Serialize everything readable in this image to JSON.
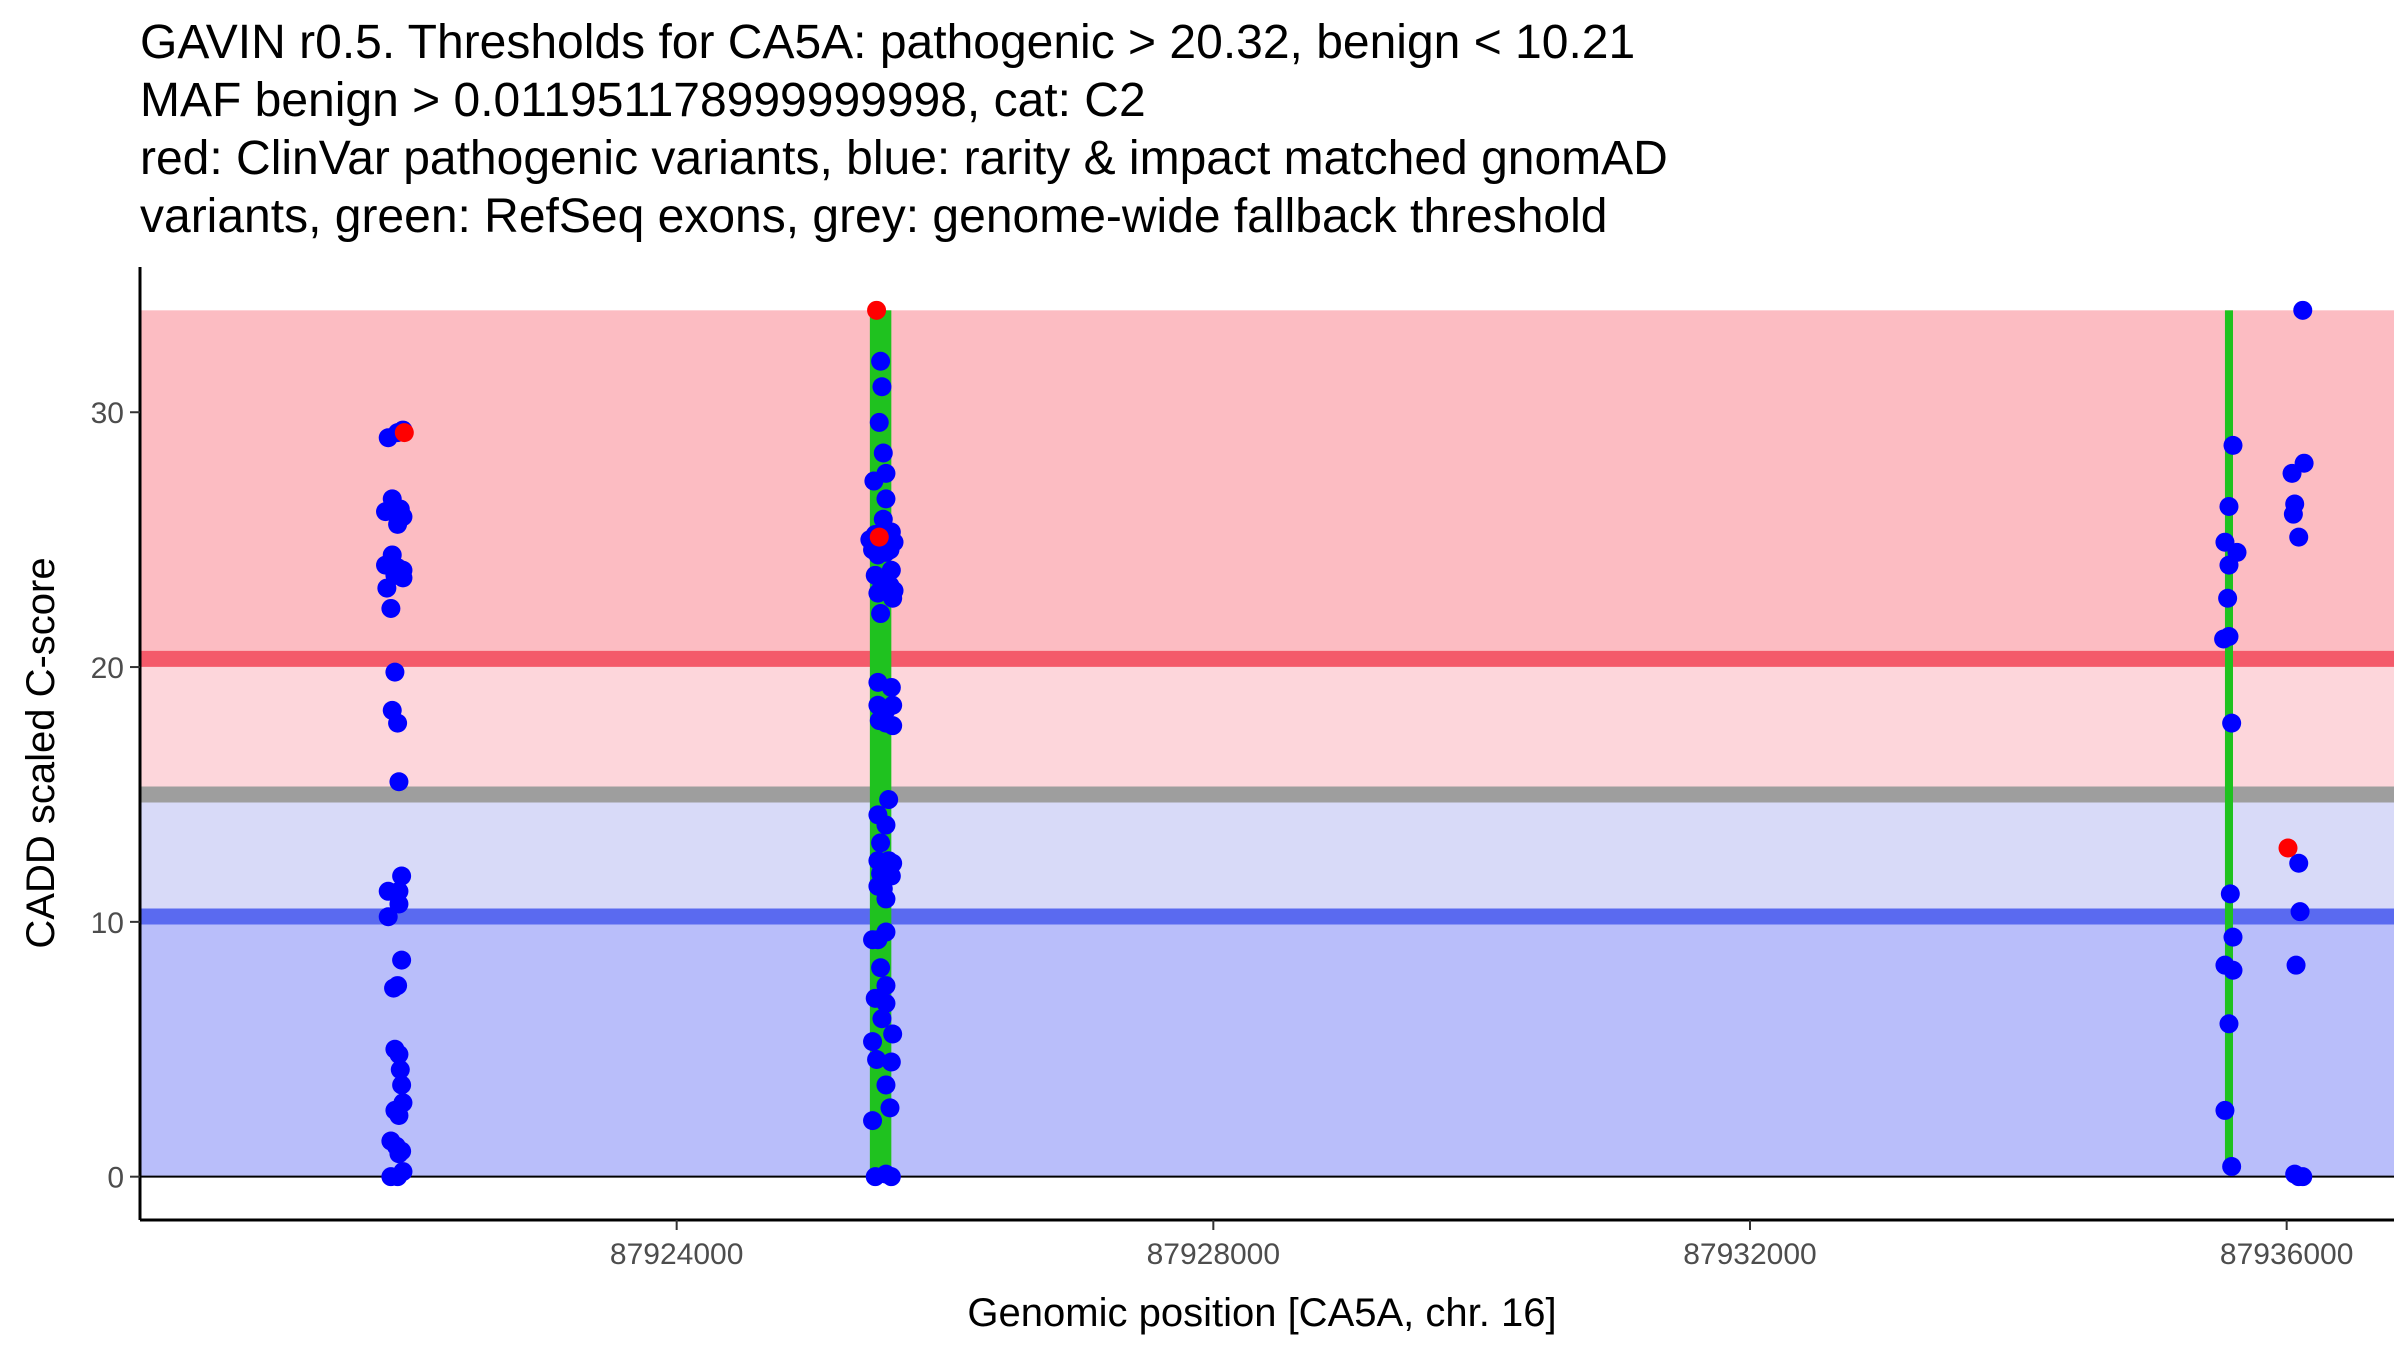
{
  "chart_data": {
    "type": "scatter",
    "title_lines": [
      "GAVIN r0.5. Thresholds for CA5A: pathogenic > 20.32, benign < 10.21",
      "MAF benign > 0.011951178999999998, cat: C2",
      "red: ClinVar pathogenic variants, blue: rarity & impact matched gnomAD",
      "variants, green: RefSeq exons, grey: genome-wide fallback threshold"
    ],
    "xlabel": "Genomic position [CA5A, chr. 16]",
    "ylabel": "CADD scaled C-score",
    "xlim": [
      87920000,
      87936800
    ],
    "ylim": [
      -1.7,
      35.7
    ],
    "xticks": [
      87924000,
      87928000,
      87932000,
      87936000
    ],
    "xtick_labels": [
      "87924000",
      "87928000",
      "87932000",
      "87936000"
    ],
    "yticks": [
      0,
      10,
      20,
      30
    ],
    "ytick_labels": [
      "0",
      "10",
      "20",
      "30"
    ],
    "grid": false,
    "bands": [
      {
        "name": "pathogenic-region",
        "from": 20.32,
        "to": 34,
        "color": "#fcbcc2"
      },
      {
        "name": "intermediate-upper",
        "from": 15,
        "to": 20.32,
        "color": "#fdd6db"
      },
      {
        "name": "intermediate-lower",
        "from": 10.21,
        "to": 15,
        "color": "#d8daf8"
      },
      {
        "name": "benign-region",
        "from": 0,
        "to": 10.21,
        "color": "#b9befa"
      }
    ],
    "threshold_lines": [
      {
        "name": "pathogenic-threshold",
        "y": 20.32,
        "color": "#f45a6a"
      },
      {
        "name": "fallback-threshold",
        "y": 15,
        "color": "#9e9e9e"
      },
      {
        "name": "benign-threshold",
        "y": 10.21,
        "color": "#5a6af0"
      }
    ],
    "exons": [
      {
        "x_from": 87925440,
        "x_to": 87925600,
        "y_from": 0,
        "y_to": 34
      },
      {
        "x_from": 87935540,
        "x_to": 87935600,
        "y_from": 0.4,
        "y_to": 34
      }
    ],
    "series": [
      {
        "name": "gnomAD",
        "color": "#0000ff",
        "points": [
          [
            87921850,
            29.0
          ],
          [
            87921920,
            29.2
          ],
          [
            87921960,
            29.3
          ],
          [
            87921880,
            26.6
          ],
          [
            87921830,
            26.1
          ],
          [
            87921920,
            25.6
          ],
          [
            87921960,
            25.9
          ],
          [
            87921940,
            26.2
          ],
          [
            87921880,
            24.4
          ],
          [
            87921830,
            24.0
          ],
          [
            87921900,
            23.6
          ],
          [
            87921960,
            23.5
          ],
          [
            87921840,
            23.1
          ],
          [
            87921870,
            22.3
          ],
          [
            87921920,
            23.9
          ],
          [
            87921960,
            23.8
          ],
          [
            87921900,
            19.8
          ],
          [
            87921880,
            18.3
          ],
          [
            87921920,
            17.8
          ],
          [
            87921930,
            15.5
          ],
          [
            87921850,
            11.2
          ],
          [
            87921930,
            11.2
          ],
          [
            87921950,
            11.8
          ],
          [
            87921850,
            10.2
          ],
          [
            87921930,
            10.7
          ],
          [
            87921950,
            8.5
          ],
          [
            87921890,
            7.4
          ],
          [
            87921920,
            7.5
          ],
          [
            87921900,
            5.0
          ],
          [
            87921930,
            4.8
          ],
          [
            87921940,
            4.2
          ],
          [
            87921950,
            3.6
          ],
          [
            87921960,
            2.9
          ],
          [
            87921900,
            2.6
          ],
          [
            87921930,
            2.4
          ],
          [
            87921870,
            1.4
          ],
          [
            87921910,
            1.2
          ],
          [
            87921930,
            0.9
          ],
          [
            87921950,
            1.0
          ],
          [
            87921870,
            0.0
          ],
          [
            87921920,
            0.0
          ],
          [
            87921960,
            0.2
          ],
          [
            87925520,
            32.0
          ],
          [
            87925530,
            31.0
          ],
          [
            87925510,
            29.6
          ],
          [
            87925540,
            28.4
          ],
          [
            87925560,
            27.6
          ],
          [
            87925470,
            27.3
          ],
          [
            87925560,
            26.6
          ],
          [
            87925540,
            25.8
          ],
          [
            87925440,
            25.0
          ],
          [
            87925460,
            24.6
          ],
          [
            87925480,
            25.2
          ],
          [
            87925500,
            24.4
          ],
          [
            87925520,
            25.0
          ],
          [
            87925600,
            25.3
          ],
          [
            87925620,
            24.9
          ],
          [
            87925590,
            24.6
          ],
          [
            87925560,
            24.5
          ],
          [
            87925600,
            23.8
          ],
          [
            87925480,
            23.6
          ],
          [
            87925530,
            23.2
          ],
          [
            87925590,
            23.2
          ],
          [
            87925620,
            23.0
          ],
          [
            87925500,
            22.9
          ],
          [
            87925610,
            22.7
          ],
          [
            87925520,
            22.1
          ],
          [
            87925500,
            19.4
          ],
          [
            87925600,
            19.2
          ],
          [
            87925500,
            18.5
          ],
          [
            87925560,
            18.3
          ],
          [
            87925610,
            18.5
          ],
          [
            87925510,
            17.9
          ],
          [
            87925560,
            17.8
          ],
          [
            87925610,
            17.7
          ],
          [
            87925580,
            14.8
          ],
          [
            87925500,
            14.2
          ],
          [
            87925560,
            13.8
          ],
          [
            87925520,
            13.1
          ],
          [
            87925580,
            12.4
          ],
          [
            87925610,
            12.3
          ],
          [
            87925500,
            12.4
          ],
          [
            87925520,
            11.9
          ],
          [
            87925560,
            11.8
          ],
          [
            87925600,
            11.8
          ],
          [
            87925500,
            11.4
          ],
          [
            87925540,
            11.3
          ],
          [
            87925560,
            10.9
          ],
          [
            87925460,
            9.3
          ],
          [
            87925500,
            9.3
          ],
          [
            87925560,
            9.6
          ],
          [
            87925520,
            8.2
          ],
          [
            87925560,
            7.5
          ],
          [
            87925480,
            7.0
          ],
          [
            87925560,
            6.8
          ],
          [
            87925530,
            6.2
          ],
          [
            87925610,
            5.6
          ],
          [
            87925460,
            5.3
          ],
          [
            87925490,
            4.6
          ],
          [
            87925600,
            4.5
          ],
          [
            87925560,
            3.6
          ],
          [
            87925590,
            2.7
          ],
          [
            87925460,
            2.2
          ],
          [
            87925480,
            0.0
          ],
          [
            87925560,
            0.1
          ],
          [
            87925600,
            0.0
          ],
          [
            87935600,
            28.7
          ],
          [
            87935570,
            26.3
          ],
          [
            87935540,
            24.9
          ],
          [
            87935630,
            24.5
          ],
          [
            87935570,
            24.0
          ],
          [
            87935560,
            22.7
          ],
          [
            87935530,
            21.1
          ],
          [
            87935570,
            21.2
          ],
          [
            87935590,
            17.8
          ],
          [
            87935580,
            11.1
          ],
          [
            87935600,
            9.4
          ],
          [
            87935540,
            8.3
          ],
          [
            87935600,
            8.1
          ],
          [
            87935570,
            6.0
          ],
          [
            87935540,
            2.6
          ],
          [
            87935590,
            0.4
          ],
          [
            87936040,
            27.6
          ],
          [
            87936130,
            28.0
          ],
          [
            87936060,
            26.4
          ],
          [
            87936050,
            26.0
          ],
          [
            87936090,
            25.1
          ],
          [
            87936120,
            34.0
          ],
          [
            87936090,
            12.3
          ],
          [
            87936100,
            10.4
          ],
          [
            87936070,
            8.3
          ],
          [
            87936060,
            0.1
          ],
          [
            87936090,
            0.0
          ],
          [
            87936120,
            0.0
          ]
        ]
      },
      {
        "name": "ClinVar pathogenic",
        "color": "#ff0000",
        "points": [
          [
            87925490,
            34.0
          ],
          [
            87925510,
            25.1
          ],
          [
            87921970,
            29.2
          ],
          [
            87936010,
            12.9
          ]
        ]
      }
    ]
  }
}
